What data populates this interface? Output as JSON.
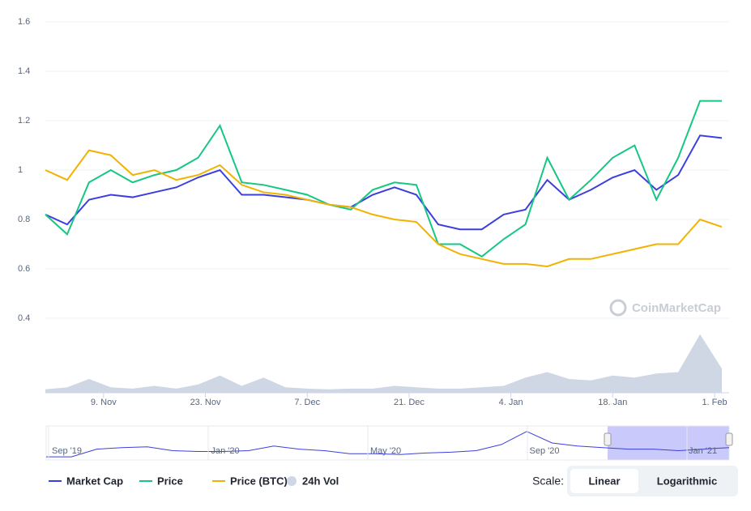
{
  "chart_data": {
    "type": "line",
    "x": [
      0,
      3,
      6,
      9,
      12,
      15,
      18,
      21,
      24,
      27,
      30,
      33,
      36,
      39,
      42,
      45,
      48,
      51,
      54,
      57,
      60,
      63,
      66,
      69,
      72,
      75,
      78,
      81,
      84,
      87,
      90,
      93
    ],
    "xlim": [
      0,
      94
    ],
    "xticks": [
      {
        "value": 8,
        "label": "9. Nov"
      },
      {
        "value": 22,
        "label": "23. Nov"
      },
      {
        "value": 36,
        "label": "7. Dec"
      },
      {
        "value": 50,
        "label": "21. Dec"
      },
      {
        "value": 64,
        "label": "4. Jan"
      },
      {
        "value": 78,
        "label": "18. Jan"
      },
      {
        "value": 92,
        "label": "1. Feb"
      }
    ],
    "ylim": [
      0.4,
      1.6
    ],
    "yticks": [
      0.4,
      0.6,
      0.8,
      1,
      1.2,
      1.4,
      1.6
    ],
    "grid": true,
    "series": [
      {
        "name": "Market Cap",
        "color": "#3c3fde",
        "values": [
          0.82,
          0.78,
          0.88,
          0.9,
          0.89,
          0.91,
          0.93,
          0.97,
          1.0,
          0.9,
          0.9,
          0.89,
          0.88,
          0.86,
          0.85,
          0.9,
          0.93,
          0.9,
          0.78,
          0.76,
          0.76,
          0.82,
          0.84,
          0.96,
          0.88,
          0.92,
          0.97,
          1.0,
          0.92,
          0.98,
          1.14,
          1.13
        ]
      },
      {
        "name": "Price",
        "color": "#16c784",
        "values": [
          0.82,
          0.74,
          0.95,
          1.0,
          0.95,
          0.98,
          1.0,
          1.05,
          1.18,
          0.95,
          0.94,
          0.92,
          0.9,
          0.86,
          0.84,
          0.92,
          0.95,
          0.94,
          0.7,
          0.7,
          0.65,
          0.72,
          0.78,
          1.05,
          0.88,
          0.96,
          1.05,
          1.1,
          0.88,
          1.05,
          1.28,
          1.28
        ]
      },
      {
        "name": "Price (BTC)",
        "color": "#f2b200",
        "values": [
          1.0,
          0.96,
          1.08,
          1.06,
          0.98,
          1.0,
          0.96,
          0.98,
          1.02,
          0.94,
          0.91,
          0.9,
          0.88,
          0.86,
          0.85,
          0.82,
          0.8,
          0.79,
          0.7,
          0.66,
          0.64,
          0.62,
          0.62,
          0.61,
          0.64,
          0.64,
          0.66,
          0.68,
          0.7,
          0.7,
          0.8,
          0.77
        ]
      }
    ],
    "volume": {
      "name": "24h Vol",
      "color": "#cfd6e4",
      "ylim": [
        0,
        100
      ],
      "values": [
        5,
        8,
        20,
        8,
        6,
        10,
        6,
        12,
        25,
        10,
        22,
        8,
        6,
        5,
        6,
        6,
        10,
        8,
        6,
        6,
        8,
        10,
        22,
        30,
        20,
        18,
        25,
        22,
        28,
        30,
        85,
        35
      ]
    },
    "navigator": {
      "labels": [
        "Sep '19",
        "Jan '20",
        "May '20",
        "Sep '20",
        "Jan '21"
      ],
      "ylim": [
        0,
        40
      ],
      "values": [
        2,
        2,
        12,
        14,
        15,
        10,
        9,
        9,
        10,
        16,
        12,
        10,
        6,
        6,
        5,
        7,
        8,
        10,
        18,
        35,
        20,
        16,
        14,
        12,
        12,
        10,
        12,
        14
      ]
    },
    "watermark": "CoinMarketCap",
    "scale": {
      "label": "Scale:",
      "options": [
        "Linear",
        "Logarithmic"
      ]
    }
  }
}
